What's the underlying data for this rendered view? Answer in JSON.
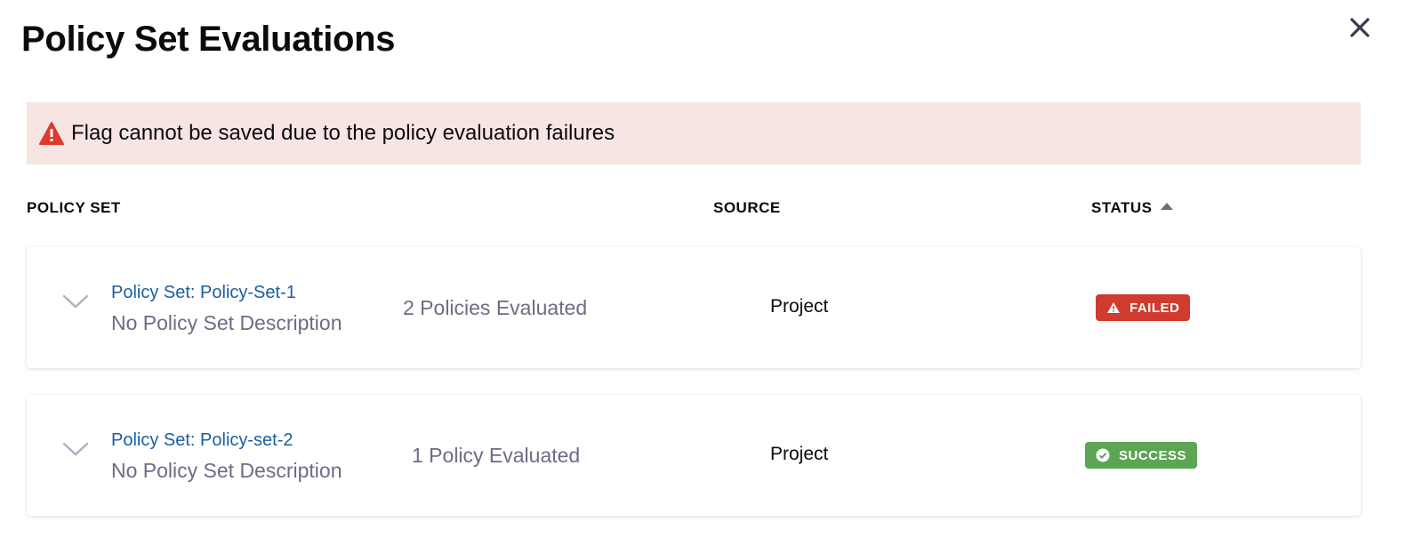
{
  "dialog": {
    "title": "Policy Set Evaluations",
    "close_icon": "close-icon"
  },
  "banner": {
    "icon": "warning-triangle-icon",
    "message": "Flag cannot be saved due to the policy evaluation failures",
    "color": "#f7e5e4"
  },
  "table": {
    "headers": {
      "policy_set": "POLICY SET",
      "source": "SOURCE",
      "status": "STATUS",
      "status_sort": "ascending"
    },
    "rows": [
      {
        "name": "Policy Set: Policy-Set-1",
        "description": "No Policy Set Description",
        "count": "2 Policies Evaluated",
        "source": "Project",
        "status": "FAILED",
        "status_color": "#cf3b2e",
        "status_icon": "warning-icon"
      },
      {
        "name": "Policy Set: Policy-set-2",
        "description": "No Policy Set Description",
        "count": "1 Policy Evaluated",
        "source": "Project",
        "status": "SUCCESS",
        "status_color": "#5ba554",
        "status_icon": "check-circle-icon"
      }
    ]
  }
}
